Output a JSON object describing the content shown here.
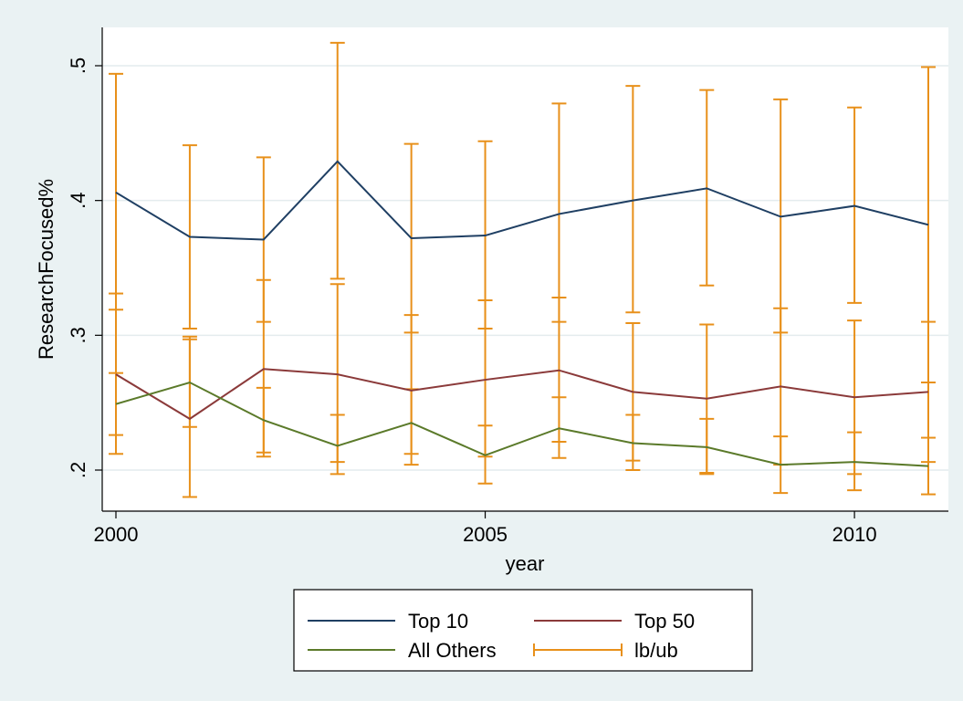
{
  "chart_data": {
    "type": "line",
    "xlabel": "year",
    "ylabel": "ResearchFocused%",
    "x": [
      2000,
      2001,
      2002,
      2003,
      2004,
      2005,
      2006,
      2007,
      2008,
      2009,
      2010,
      2011
    ],
    "xlim": [
      2000,
      2011
    ],
    "ylim": [
      0.17,
      0.53
    ],
    "x_ticks": [
      "2000",
      "2005",
      "2010"
    ],
    "x_tick_values": [
      2000,
      2005,
      2010
    ],
    "y_ticks": [
      ".2",
      ".3",
      ".4",
      ".5"
    ],
    "y_tick_values": [
      0.2,
      0.3,
      0.4,
      0.5
    ],
    "grid": "horizontal",
    "legend_position": "bottom",
    "series": [
      {
        "name": "Top 10",
        "color": "#1f3f63",
        "values": [
          0.406,
          0.373,
          0.371,
          0.429,
          0.372,
          0.374,
          0.39,
          0.4,
          0.409,
          0.388,
          0.396,
          0.382
        ],
        "lb": [
          0.319,
          0.305,
          0.31,
          0.342,
          0.302,
          0.305,
          0.31,
          0.317,
          0.337,
          0.302,
          0.324,
          0.265
        ],
        "ub": [
          0.494,
          0.441,
          0.432,
          0.517,
          0.442,
          0.444,
          0.472,
          0.485,
          0.482,
          0.475,
          0.469,
          0.499
        ]
      },
      {
        "name": "Top 50",
        "color": "#8b3a3a",
        "values": [
          0.271,
          0.238,
          0.275,
          0.271,
          0.259,
          0.267,
          0.274,
          0.258,
          0.253,
          0.262,
          0.254,
          0.258
        ],
        "lb": [
          0.212,
          0.18,
          0.213,
          0.206,
          0.204,
          0.21,
          0.221,
          0.207,
          0.198,
          0.204,
          0.197,
          0.206
        ],
        "ub": [
          0.331,
          0.297,
          0.341,
          0.338,
          0.315,
          0.326,
          0.328,
          0.309,
          0.308,
          0.32,
          0.311,
          0.31
        ]
      },
      {
        "name": "All Others",
        "color": "#5b7a2a",
        "values": [
          0.249,
          0.265,
          0.237,
          0.218,
          0.235,
          0.211,
          0.231,
          0.22,
          0.217,
          0.204,
          0.206,
          0.203
        ],
        "lb": [
          0.226,
          0.232,
          0.21,
          0.197,
          0.212,
          0.19,
          0.209,
          0.2,
          0.197,
          0.183,
          0.185,
          0.182
        ],
        "ub": [
          0.272,
          0.299,
          0.261,
          0.241,
          0.26,
          0.233,
          0.254,
          0.241,
          0.238,
          0.225,
          0.228,
          0.224
        ]
      }
    ],
    "ci_label": "lb/ub",
    "ci_color": "#e8901a",
    "legend": [
      {
        "label": "Top 10",
        "kind": "line",
        "color": "#1f3f63"
      },
      {
        "label": "Top 50",
        "kind": "line",
        "color": "#8b3a3a"
      },
      {
        "label": "All Others",
        "kind": "line",
        "color": "#5b7a2a"
      },
      {
        "label": "lb/ub",
        "kind": "errorbar",
        "color": "#e8901a"
      }
    ]
  }
}
